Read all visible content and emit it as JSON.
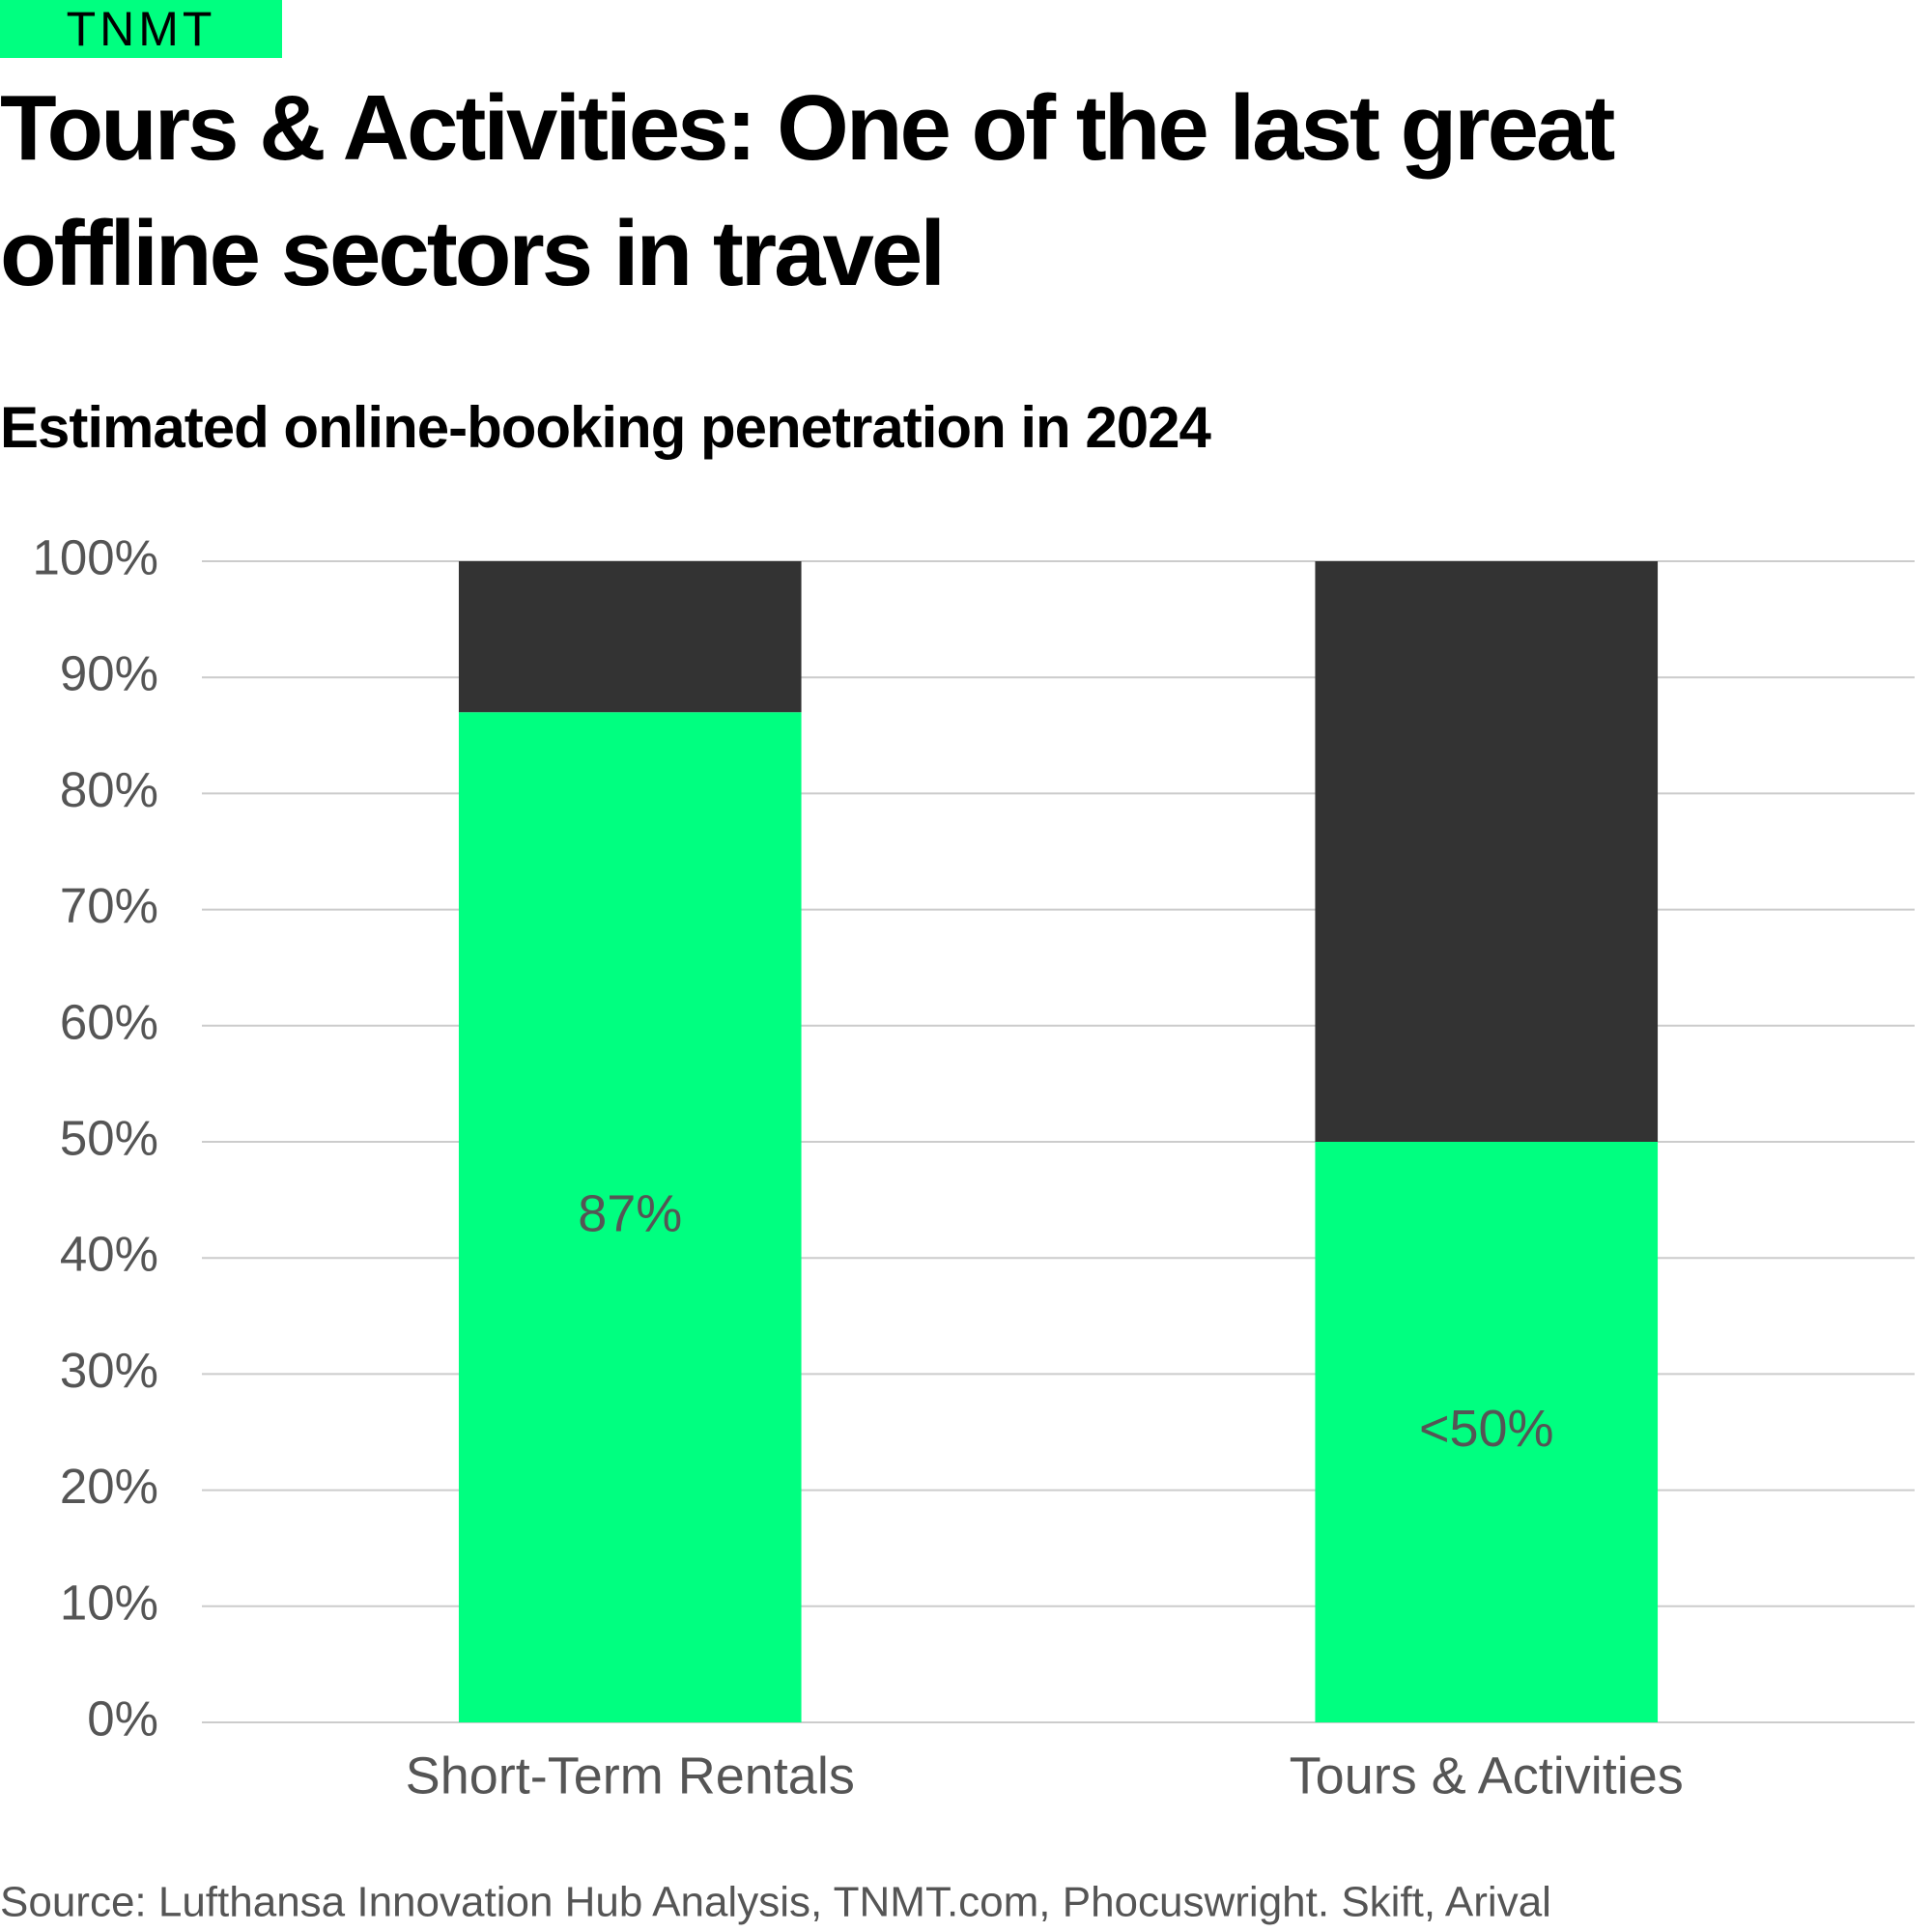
{
  "brand": "TNMT",
  "chart_data": {
    "type": "stacked-bar",
    "title": "Tours & Activities: One of the last great offline sectors in travel",
    "subtitle": "Estimated online-booking penetration in 2024",
    "source": "Source: Lufthansa Innovation Hub Analysis, TNMT.com, Phocuswright. Skift, Arival",
    "categories": [
      "Short-Term Rentals",
      "Tours & Activities"
    ],
    "series": [
      {
        "color": "#00ff80",
        "values": [
          87,
          50
        ],
        "value_labels": [
          "87%",
          "<50%"
        ]
      },
      {
        "color": "#333333",
        "values": [
          13,
          50
        ]
      }
    ],
    "ylim": [
      0,
      100
    ],
    "yticks": [
      {
        "value": 0,
        "label": "0%"
      },
      {
        "value": 10,
        "label": "10%"
      },
      {
        "value": 20,
        "label": "20%"
      },
      {
        "value": 30,
        "label": "30%"
      },
      {
        "value": 40,
        "label": "40%"
      },
      {
        "value": 50,
        "label": "50%"
      },
      {
        "value": 60,
        "label": "60%"
      },
      {
        "value": 70,
        "label": "70%"
      },
      {
        "value": 80,
        "label": "80%"
      },
      {
        "value": 90,
        "label": "90%"
      },
      {
        "value": 100,
        "label": "100%"
      }
    ],
    "grid": true
  }
}
